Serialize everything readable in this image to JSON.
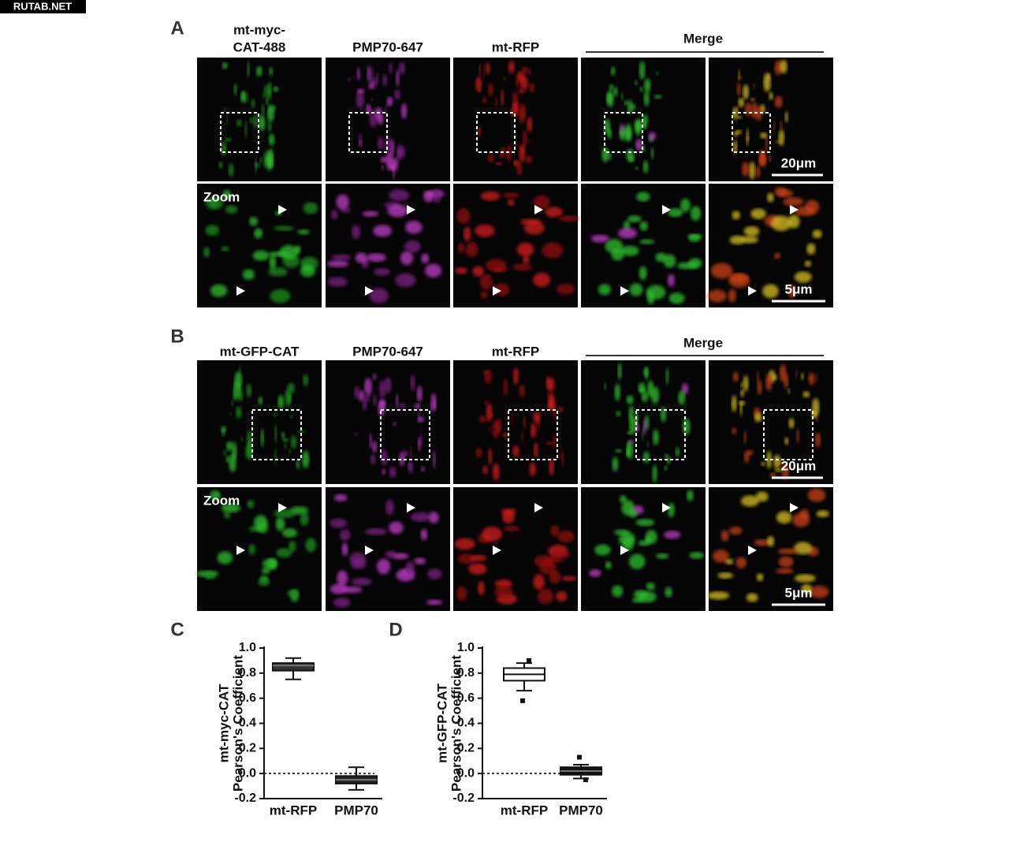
{
  "watermark": "RUTAB.NET",
  "panels": [
    {
      "label": "A",
      "columns": [
        [
          "mt-myc-",
          "CAT-488"
        ],
        [
          "PMP70-647"
        ],
        [
          "mt-RFP"
        ]
      ],
      "merge": "Merge",
      "zoom": "Zoom",
      "scale_bars": [
        "20μm",
        "5μm"
      ]
    },
    {
      "label": "B",
      "columns": [
        [
          "mt-GFP-CAT"
        ],
        [
          "PMP70-647"
        ],
        [
          "mt-RFP"
        ]
      ],
      "merge": "Merge",
      "zoom": "Zoom",
      "scale_bars": [
        "20μm",
        "5μm"
      ]
    }
  ],
  "chart_data": [
    {
      "type": "box",
      "label": "C",
      "ylabel": [
        "mt-myc-CAT",
        "Pearson's Coefficient"
      ],
      "categories": [
        "mt-RFP",
        "PMP70"
      ],
      "boxes": [
        {
          "min": 0.75,
          "q1": 0.82,
          "median": 0.86,
          "q3": 0.88,
          "max": 0.92,
          "outliers": []
        },
        {
          "min": -0.13,
          "q1": -0.08,
          "median": -0.05,
          "q3": -0.02,
          "max": 0.05,
          "outliers": []
        }
      ],
      "box_colors": [
        "#333333",
        "#222222"
      ],
      "ylim": [
        -0.2,
        1
      ],
      "yticks": [
        -0.2,
        {
          "value": 0,
          "label": "0.0"
        },
        0.2,
        0.4,
        0.6,
        0.8,
        {
          "value": 1,
          "label": "1.0"
        }
      ],
      "hline": 0
    },
    {
      "type": "box",
      "label": "D",
      "ylabel": [
        "mt-GFP-CAT",
        "Pearson's Coefficient"
      ],
      "categories": [
        "mt-RFP",
        "PMP70"
      ],
      "boxes": [
        {
          "min": 0.66,
          "q1": 0.74,
          "median": 0.79,
          "q3": 0.84,
          "max": 0.88,
          "outliers": [
            0.58,
            0.9
          ]
        },
        {
          "min": -0.04,
          "q1": -0.01,
          "median": 0.02,
          "q3": 0.05,
          "max": 0.07,
          "outliers": [
            0.13,
            -0.05
          ]
        }
      ],
      "box_colors": [
        "#ffffff",
        "#111111"
      ],
      "ylim": [
        -0.2,
        1
      ],
      "yticks": [
        -0.2,
        {
          "value": 0,
          "label": "0.0"
        },
        0.2,
        0.4,
        0.6,
        0.8,
        {
          "value": 1,
          "label": "1.0"
        }
      ],
      "hline": 0
    }
  ]
}
